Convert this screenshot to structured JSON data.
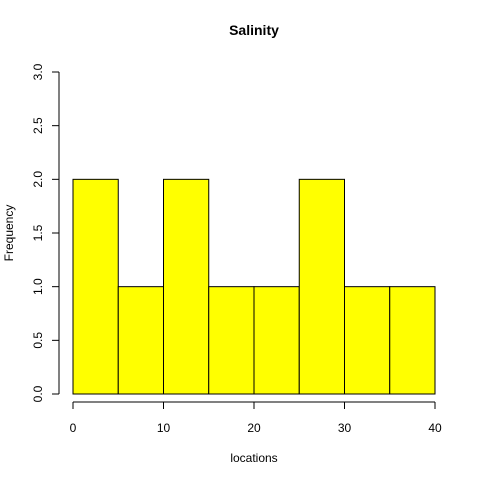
{
  "chart_data": {
    "type": "bar",
    "title": "Salinity",
    "xlabel": "locations",
    "ylabel": "Frequency",
    "bins": [
      {
        "start": 0,
        "end": 5,
        "count": 2
      },
      {
        "start": 5,
        "end": 10,
        "count": 1
      },
      {
        "start": 10,
        "end": 15,
        "count": 2
      },
      {
        "start": 15,
        "end": 20,
        "count": 1
      },
      {
        "start": 20,
        "end": 25,
        "count": 1
      },
      {
        "start": 25,
        "end": 30,
        "count": 2
      },
      {
        "start": 30,
        "end": 35,
        "count": 1
      },
      {
        "start": 35,
        "end": 40,
        "count": 1
      }
    ],
    "xlim": [
      0,
      40
    ],
    "ylim": [
      0,
      3
    ],
    "xticks": [
      "0",
      "10",
      "20",
      "30",
      "40"
    ],
    "yticks": [
      "0.0",
      "0.5",
      "1.0",
      "1.5",
      "2.0",
      "2.5",
      "3.0"
    ],
    "bar_color": "#ffff00",
    "grid": false
  }
}
